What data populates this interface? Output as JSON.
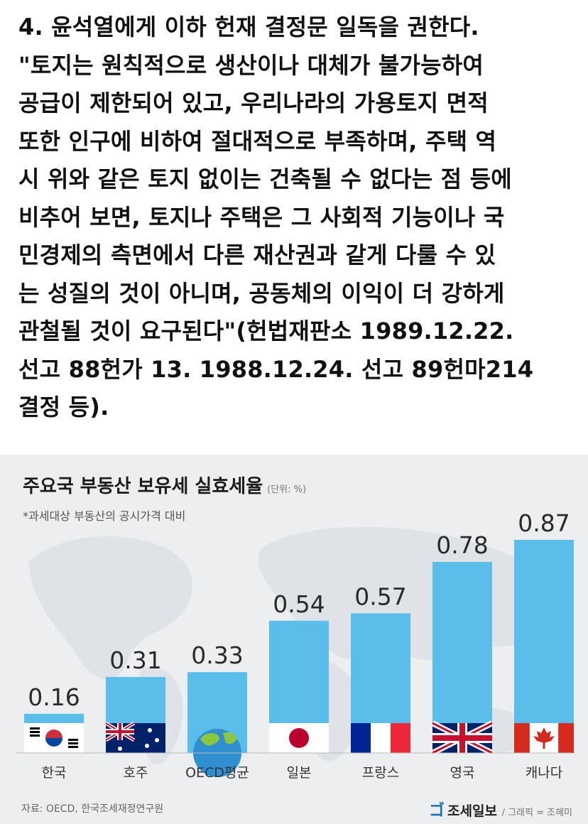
{
  "post": {
    "paragraph": "4. 윤석열에게 이하 헌재 결정문 일독을 권한다.\n\"토지는 원칙적으로 생산이나 대체가 불가능하여\n공급이 제한되어 있고, 우리나라의 가용토지 면적\n또한 인구에 비하여 절대적으로 부족하며, 주택 역\n시 위와 같은 토지 없이는 건축될 수 없다는 점 등에\n비추어 보면, 토지나 주택은 그 사회적 기능이나 국\n민경제의 측면에서 다른 재산권과 같게 다룰 수 있\n는 성질의 것이 아니며, 공동체의 이익이 더 강하게\n관철될 것이 요구된다\"(헌법재판소 1989.12.22.\n선고 88헌가 13. 1988.12.24. 선고 89헌마214\n결정 등)."
  },
  "chart_data": {
    "type": "bar",
    "title": "주요국 부동산 보유세 실효세율",
    "unit": "(단위: %)",
    "subtitle": "*과세대상 부동산의 공시가격 대비",
    "categories": [
      "한국",
      "호주",
      "OECD평균",
      "일본",
      "프랑스",
      "영국",
      "캐나다"
    ],
    "values": [
      0.16,
      0.31,
      0.33,
      0.54,
      0.57,
      0.78,
      0.87
    ],
    "value_labels": [
      "0.16",
      "0.31",
      "0.33",
      "0.54",
      "0.57",
      "0.78",
      "0.87"
    ],
    "ylim": [
      0,
      0.87
    ],
    "grid": false,
    "bar_color": "#5bbdea",
    "flag_icons": [
      "korea-flag-icon",
      "australia-flag-icon",
      "globe-icon",
      "japan-flag-icon",
      "france-flag-icon",
      "uk-flag-icon",
      "canada-flag-icon"
    ]
  },
  "footer": {
    "source": "자료: OECD, 한국조세재정연구원",
    "brand": "조세일보",
    "credit": "/ 그래픽 = 조혜미"
  }
}
